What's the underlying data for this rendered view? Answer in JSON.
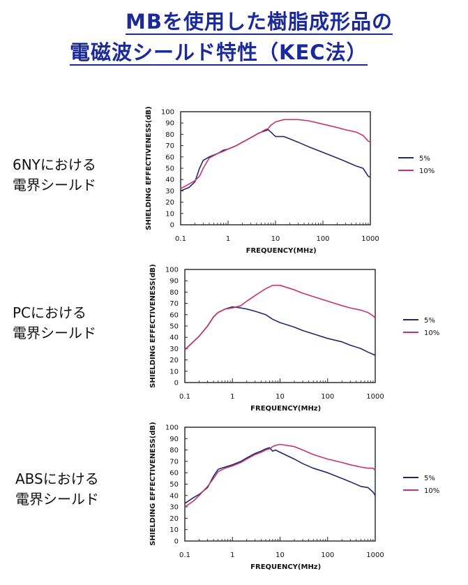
{
  "page": {
    "title_line1": "MBを使用した樹脂成形品の",
    "title_line2": "電磁波シールド特性（KEC法）"
  },
  "colors": {
    "title": "#1a2a9c",
    "series_5": "#1f2a6e",
    "series_10": "#c8326e"
  },
  "chart_data": [
    {
      "type": "line",
      "label_line1": "6NYにおける",
      "label_line2": "電界シールド",
      "xlabel": "FREQUENCY(MHz)",
      "ylabel": "SHIELDING EFFECTIVENESS(dB)",
      "xscale": "log",
      "xlim": [
        0.1,
        1000
      ],
      "ylim": [
        0,
        100
      ],
      "xticks": [
        "0.1",
        "1",
        "10",
        "100",
        "1000"
      ],
      "yticks": [
        "0",
        "10",
        "20",
        "30",
        "40",
        "50",
        "60",
        "70",
        "80",
        "90",
        "100"
      ],
      "legend_position": "right",
      "series": [
        {
          "name": "5%",
          "x": [
            0.1,
            0.15,
            0.2,
            0.25,
            0.3,
            0.4,
            0.6,
            0.8,
            1,
            1.5,
            2,
            3,
            4,
            5,
            6,
            7,
            8,
            10,
            15,
            20,
            30,
            50,
            100,
            200,
            300,
            500,
            700,
            900,
            1000
          ],
          "y": [
            30,
            33,
            38,
            50,
            57,
            60,
            63,
            66,
            67,
            70,
            73,
            77,
            80,
            82,
            83,
            84,
            82,
            78,
            78,
            76,
            73,
            69,
            64,
            59,
            56,
            52,
            50,
            43,
            42
          ]
        },
        {
          "name": "10%",
          "x": [
            0.1,
            0.15,
            0.2,
            0.25,
            0.3,
            0.4,
            0.6,
            0.8,
            1,
            1.5,
            2,
            3,
            4,
            5,
            6,
            7,
            8,
            10,
            15,
            20,
            30,
            50,
            100,
            200,
            300,
            500,
            700,
            900,
            1000
          ],
          "y": [
            32,
            36,
            39,
            43,
            50,
            59,
            63,
            65,
            67,
            70,
            73,
            77,
            80,
            82,
            84,
            85,
            88,
            91,
            93,
            93,
            93,
            92,
            89,
            86,
            84,
            82,
            79,
            74,
            73
          ]
        }
      ]
    },
    {
      "type": "line",
      "label_line1": "PCにおける",
      "label_line2": "電界シールド",
      "xlabel": "FREQUENCY(MHz)",
      "ylabel": "SHIELDING EFFECTIVENESS(dB)",
      "xscale": "log",
      "xlim": [
        0.1,
        1000
      ],
      "ylim": [
        0,
        100
      ],
      "xticks": [
        "0.1",
        "1",
        "10",
        "100",
        "1000"
      ],
      "yticks": [
        "0",
        "10",
        "20",
        "30",
        "40",
        "50",
        "60",
        "70",
        "80",
        "90",
        "100"
      ],
      "legend_position": "right",
      "series": [
        {
          "name": "5%",
          "x": [
            0.1,
            0.15,
            0.2,
            0.25,
            0.3,
            0.4,
            0.5,
            0.7,
            1,
            1.5,
            2,
            3,
            5,
            7,
            10,
            20,
            30,
            50,
            100,
            200,
            300,
            500,
            700,
            900,
            1000
          ],
          "y": [
            29,
            36,
            41,
            46,
            50,
            58,
            62,
            65,
            67,
            66,
            65,
            63,
            60,
            56,
            53,
            49,
            46,
            43,
            39,
            36,
            33,
            30,
            27,
            25,
            24
          ]
        },
        {
          "name": "10%",
          "x": [
            0.1,
            0.15,
            0.2,
            0.25,
            0.3,
            0.4,
            0.5,
            0.7,
            1,
            1.5,
            2,
            3,
            5,
            7,
            10,
            20,
            30,
            50,
            100,
            200,
            300,
            500,
            700,
            900,
            1000
          ],
          "y": [
            29,
            36,
            41,
            46,
            50,
            58,
            62,
            65,
            66,
            68,
            72,
            77,
            83,
            86,
            86,
            82,
            79,
            76,
            72,
            68,
            66,
            64,
            62,
            59,
            57
          ]
        }
      ]
    },
    {
      "type": "line",
      "label_line1": "ABSにおける",
      "label_line2": "電界シールド",
      "xlabel": "FREQUENCY(MHz)",
      "ylabel": "SHIELDING EFFECTIVENESS(dB)",
      "xscale": "log",
      "xlim": [
        0.1,
        1000
      ],
      "ylim": [
        0,
        100
      ],
      "xticks": [
        "0.1",
        "1",
        "10",
        "100",
        "1000"
      ],
      "yticks": [
        "0",
        "10",
        "20",
        "30",
        "40",
        "50",
        "60",
        "70",
        "80",
        "90",
        "100"
      ],
      "legend_position": "right",
      "series": [
        {
          "name": "5%",
          "x": [
            0.1,
            0.15,
            0.2,
            0.3,
            0.4,
            0.5,
            0.7,
            1,
            1.5,
            2,
            3,
            4,
            5,
            6,
            7,
            8,
            10,
            20,
            30,
            50,
            100,
            200,
            300,
            500,
            700,
            900,
            1000
          ],
          "y": [
            33,
            38,
            41,
            47,
            57,
            63,
            65,
            67,
            70,
            73,
            77,
            79,
            81,
            82,
            79,
            80,
            78,
            72,
            68,
            64,
            60,
            55,
            52,
            48,
            47,
            43,
            40
          ]
        },
        {
          "name": "10%",
          "x": [
            0.1,
            0.15,
            0.2,
            0.3,
            0.4,
            0.5,
            0.7,
            1,
            1.5,
            2,
            3,
            4,
            5,
            6,
            7,
            8,
            10,
            20,
            30,
            50,
            100,
            200,
            300,
            500,
            700,
            900,
            1000
          ],
          "y": [
            30,
            35,
            40,
            48,
            55,
            61,
            64,
            66,
            69,
            72,
            76,
            78,
            80,
            81,
            83,
            84,
            85,
            83,
            80,
            76,
            72,
            69,
            67,
            65,
            64,
            64,
            62
          ]
        }
      ]
    }
  ]
}
